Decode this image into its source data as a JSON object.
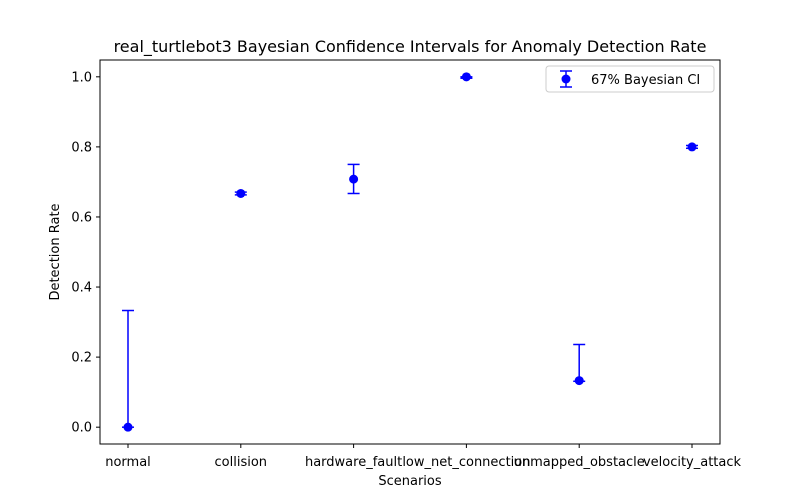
{
  "chart_data": {
    "type": "scatter",
    "title": "real_turtlebot3 Bayesian Confidence Intervals for Anomaly Detection Rate",
    "xlabel": "Scenarios",
    "ylabel": "Detection Rate",
    "categories": [
      "normal",
      "collision",
      "hardware_fault",
      "low_net_connection",
      "unmapped_obstacle",
      "velocity_attack"
    ],
    "series": [
      {
        "name": "67% Bayesian CI",
        "values": [
          0.0,
          0.667,
          0.708,
          1.0,
          0.133,
          0.8
        ],
        "ci_lower": [
          0.0,
          0.663,
          0.667,
          0.996,
          0.131,
          0.796
        ],
        "ci_upper": [
          0.333,
          0.671,
          0.75,
          1.0,
          0.236,
          0.804
        ]
      }
    ],
    "ylim": [
      -0.048,
      1.048
    ],
    "yticks": [
      0.0,
      0.2,
      0.4,
      0.6,
      0.8,
      1.0
    ],
    "ytick_labels": [
      "0.0",
      "0.2",
      "0.4",
      "0.6",
      "0.8",
      "1.0"
    ],
    "grid": false,
    "legend_position": "top-right",
    "color": "#0000ff"
  }
}
